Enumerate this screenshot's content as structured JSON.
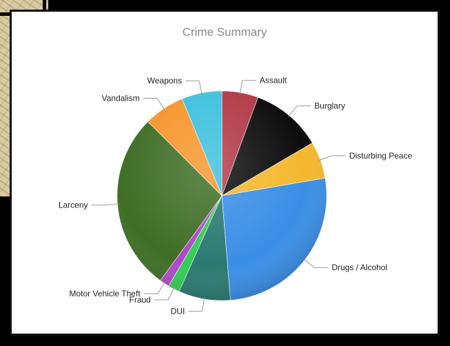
{
  "chart_data": {
    "type": "pie",
    "title": "Crime Summary",
    "legend": "none",
    "slices": [
      {
        "label": "Assault",
        "value": 5.6,
        "color": "#b23a48"
      },
      {
        "label": "Burglary",
        "value": 11.0,
        "color": "#0d0d0d"
      },
      {
        "label": "Disturbing Peace",
        "value": 5.7,
        "color": "#f5b82e"
      },
      {
        "label": "Drugs / Alcohol",
        "value": 26.4,
        "color": "#3a8ee6"
      },
      {
        "label": "DUI",
        "value": 8.0,
        "color": "#2a7a72"
      },
      {
        "label": "Fraud",
        "value": 1.8,
        "color": "#33cc55"
      },
      {
        "label": "Motor Vehicle Theft",
        "value": 1.5,
        "color": "#b048c8"
      },
      {
        "label": "Larceny",
        "value": 27.5,
        "color": "#3f6e26"
      },
      {
        "label": "Vandalism",
        "value": 6.3,
        "color": "#f7962d"
      },
      {
        "label": "Weapons",
        "value": 6.2,
        "color": "#3ec1de"
      }
    ]
  }
}
